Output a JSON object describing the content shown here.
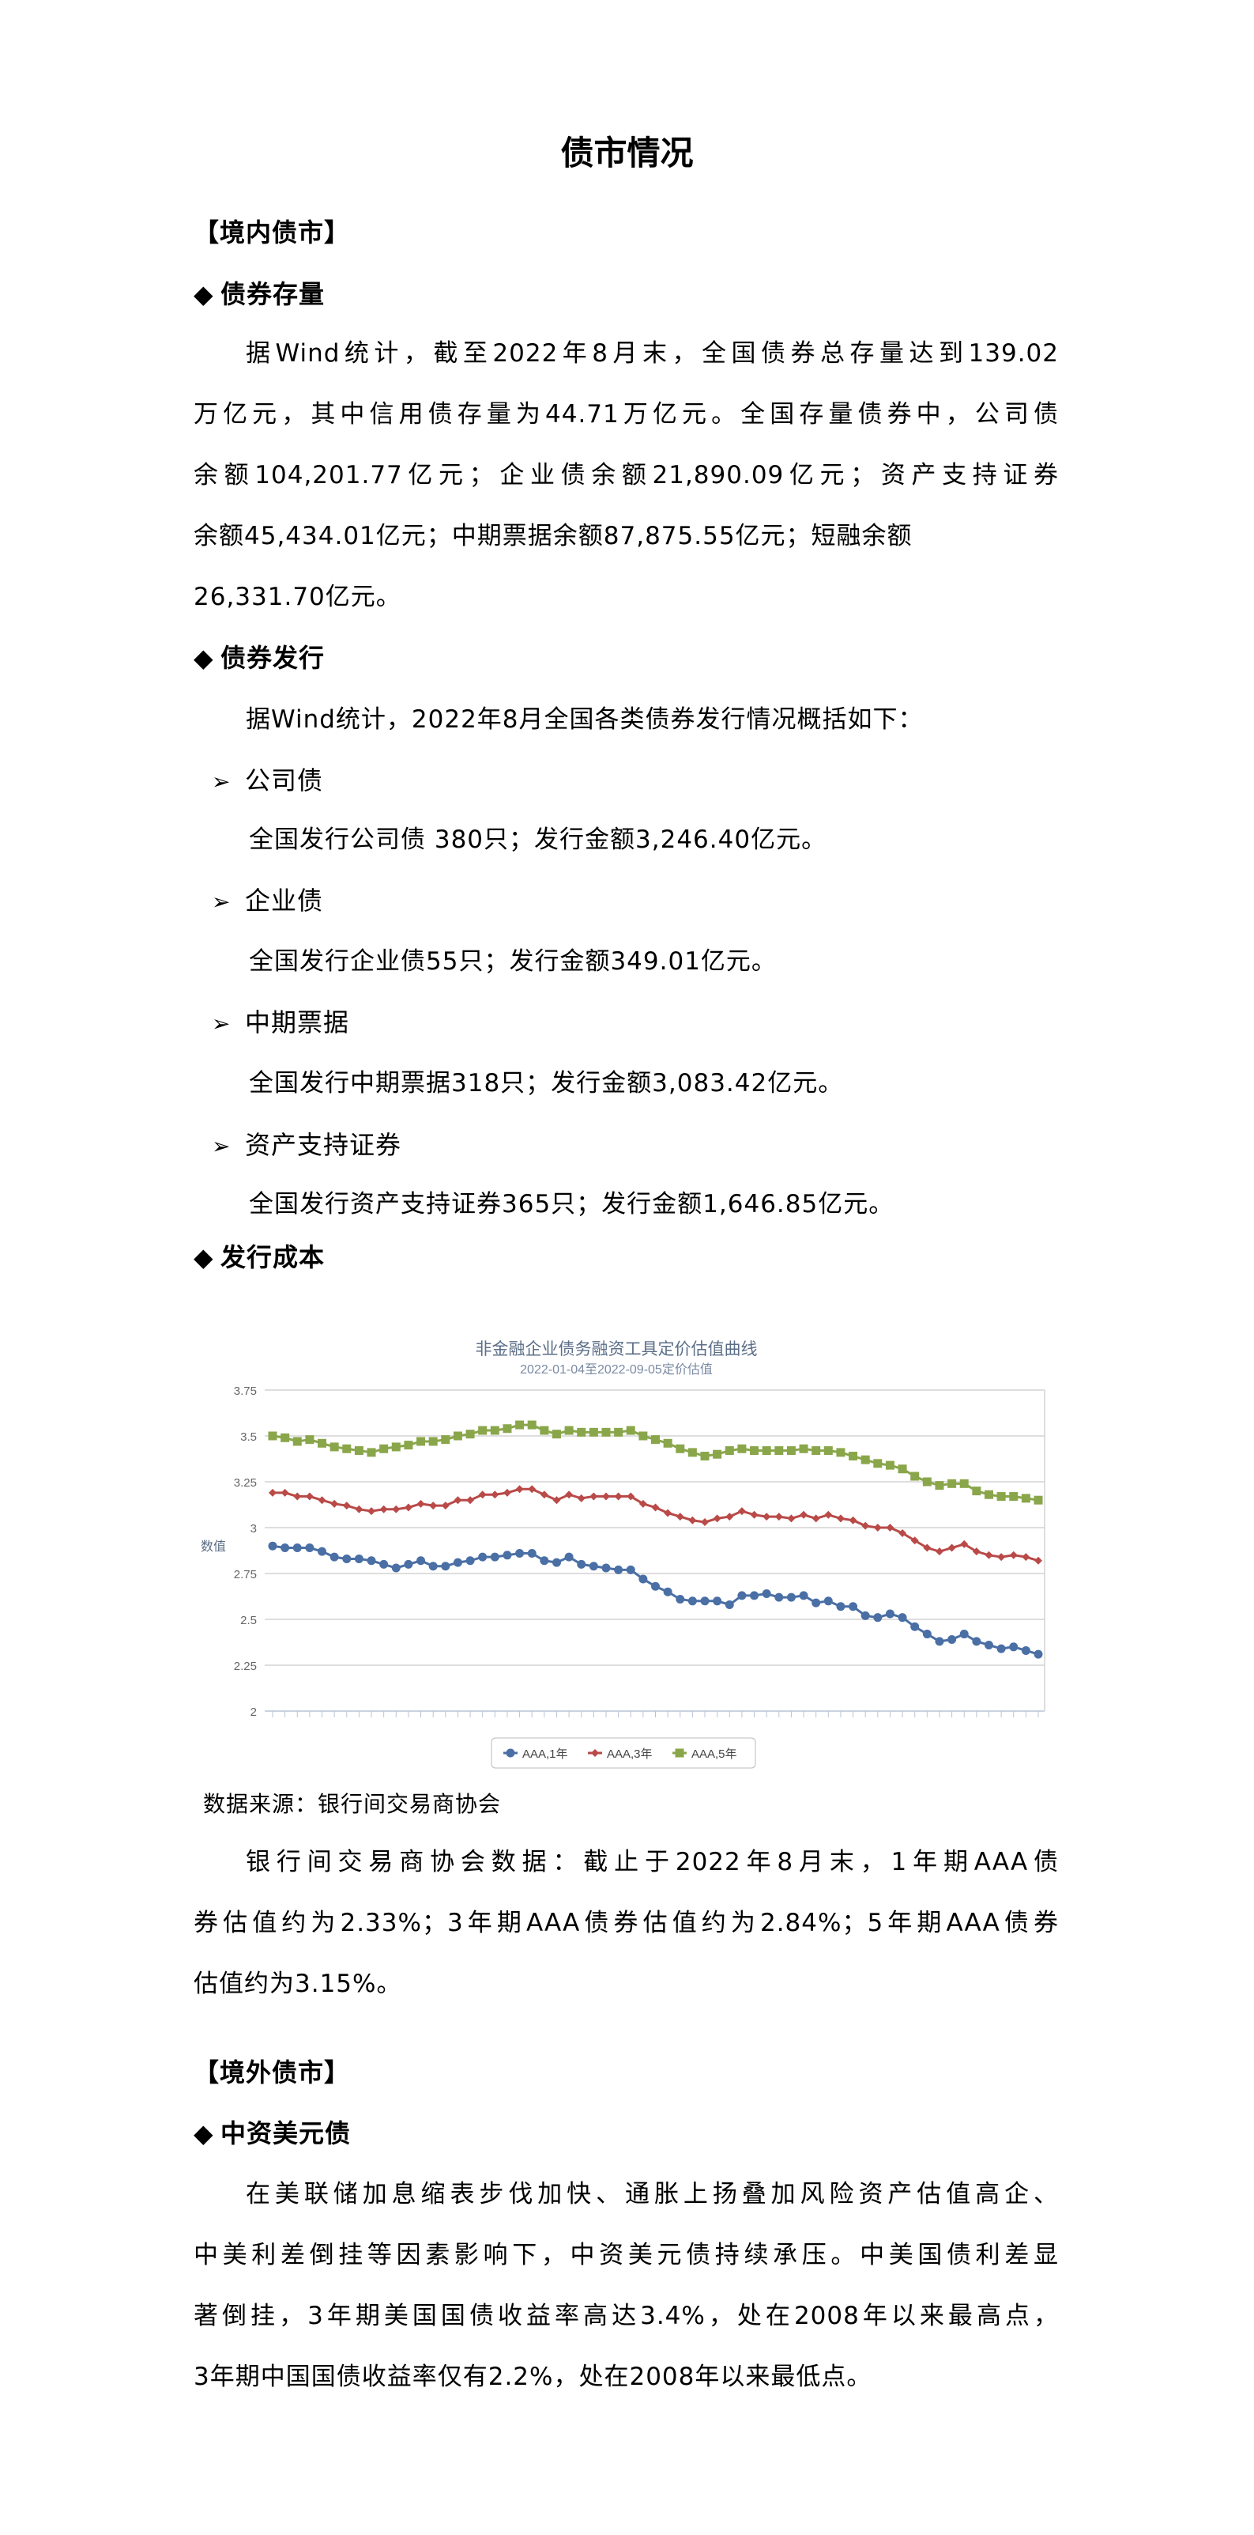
{
  "title": "债市情况",
  "domestic": {
    "header": "【境内债市】",
    "stock": {
      "heading": "债券存量",
      "lines": [
        "据Wind统计，截至2022年8月末，全国债券总存量达到139.02",
        "万亿元，其中信用债存量为44.71万亿元。全国存量债券中，公司债",
        "余额104,201.77亿元；企业债余额21,890.09亿元；资产支持证券",
        "余额45,434.01亿元；中期票据余额87,875.55亿元；短融余额",
        "26,331.70亿元。"
      ]
    },
    "issuance": {
      "heading": "债券发行",
      "intro": "据Wind统计，2022年8月全国各类债券发行情况概括如下：",
      "items": [
        {
          "label": "公司债",
          "text": "全国发行公司债 380只；发行金额3,246.40亿元。"
        },
        {
          "label": "企业债",
          "text": "全国发行企业债55只；发行金额349.01亿元。"
        },
        {
          "label": "中期票据",
          "text": "全国发行中期票据318只；发行金额3,083.42亿元。"
        },
        {
          "label": "资产支持证券",
          "text": "全国发行资产支持证券365只；发行金额1,646.85亿元。"
        }
      ]
    },
    "cost": {
      "heading": "发行成本",
      "source": "数据来源：银行间交易商协会",
      "lines": [
        "银行间交易商协会数据：截止于2022年8月末，1年期AAA债",
        "券估值约为2.33%；3年期AAA债券估值约为2.84%；5年期AAA债券",
        "估值约为3.15%。"
      ]
    }
  },
  "overseas": {
    "header": "【境外债市】",
    "usd": {
      "heading": "中资美元债",
      "lines": [
        "在美联储加息缩表步伐加快、通胀上扬叠加风险资产估值高企、",
        "中美利差倒挂等因素影响下，中资美元债持续承压。中美国债利差显",
        "著倒挂，3年期美国国债收益率高达3.4%，处在2008年以来最高点，",
        "3年期中国国债收益率仅有2.2%，处在2008年以来最低点。"
      ]
    }
  },
  "icons": {
    "bullet": "diamond-icon",
    "sub_bullet": "arrowhead-icon"
  },
  "chart_data": {
    "type": "line",
    "title": "非金融企业债务融资工具定价估值曲线",
    "subtitle": "2022-01-04至2022-09-05定价估值",
    "ylabel": "数值",
    "xlabel": "",
    "ylim": [
      2,
      3.75
    ],
    "yticks": [
      "3.75",
      "3.5",
      "3.25",
      "3",
      "2.75",
      "2.5",
      "2.25",
      "2"
    ],
    "grid": true,
    "legend_position": "bottom",
    "series": [
      {
        "name": "AAA,1年",
        "color": "#4a6fa5",
        "marker": "circle",
        "values": [
          2.9,
          2.89,
          2.89,
          2.89,
          2.87,
          2.84,
          2.83,
          2.83,
          2.82,
          2.8,
          2.78,
          2.8,
          2.82,
          2.79,
          2.79,
          2.81,
          2.82,
          2.84,
          2.84,
          2.85,
          2.86,
          2.86,
          2.82,
          2.81,
          2.84,
          2.8,
          2.79,
          2.78,
          2.77,
          2.77,
          2.72,
          2.68,
          2.65,
          2.61,
          2.6,
          2.6,
          2.6,
          2.58,
          2.63,
          2.63,
          2.64,
          2.62,
          2.62,
          2.63,
          2.59,
          2.6,
          2.57,
          2.57,
          2.52,
          2.51,
          2.53,
          2.51,
          2.46,
          2.42,
          2.38,
          2.39,
          2.42,
          2.38,
          2.36,
          2.34,
          2.35,
          2.33,
          2.31
        ]
      },
      {
        "name": "AAA,3年",
        "color": "#b94a48",
        "marker": "diamond",
        "values": [
          3.19,
          3.19,
          3.17,
          3.17,
          3.15,
          3.13,
          3.12,
          3.1,
          3.09,
          3.1,
          3.1,
          3.11,
          3.13,
          3.12,
          3.12,
          3.15,
          3.15,
          3.18,
          3.18,
          3.19,
          3.21,
          3.21,
          3.18,
          3.15,
          3.18,
          3.16,
          3.17,
          3.17,
          3.17,
          3.17,
          3.13,
          3.11,
          3.08,
          3.06,
          3.04,
          3.03,
          3.05,
          3.06,
          3.09,
          3.07,
          3.06,
          3.06,
          3.05,
          3.07,
          3.05,
          3.07,
          3.05,
          3.04,
          3.01,
          3.0,
          3.0,
          2.97,
          2.93,
          2.89,
          2.87,
          2.89,
          2.91,
          2.87,
          2.85,
          2.84,
          2.85,
          2.84,
          2.82
        ]
      },
      {
        "name": "AAA,5年",
        "color": "#8aa64a",
        "marker": "square",
        "values": [
          3.5,
          3.49,
          3.47,
          3.48,
          3.46,
          3.44,
          3.43,
          3.42,
          3.41,
          3.43,
          3.44,
          3.45,
          3.47,
          3.47,
          3.48,
          3.5,
          3.51,
          3.53,
          3.53,
          3.54,
          3.56,
          3.56,
          3.53,
          3.51,
          3.53,
          3.52,
          3.52,
          3.52,
          3.52,
          3.53,
          3.5,
          3.48,
          3.46,
          3.43,
          3.41,
          3.39,
          3.4,
          3.42,
          3.43,
          3.42,
          3.42,
          3.42,
          3.42,
          3.43,
          3.42,
          3.42,
          3.41,
          3.39,
          3.37,
          3.35,
          3.34,
          3.32,
          3.28,
          3.25,
          3.23,
          3.24,
          3.24,
          3.2,
          3.18,
          3.17,
          3.17,
          3.16,
          3.15
        ]
      }
    ]
  }
}
